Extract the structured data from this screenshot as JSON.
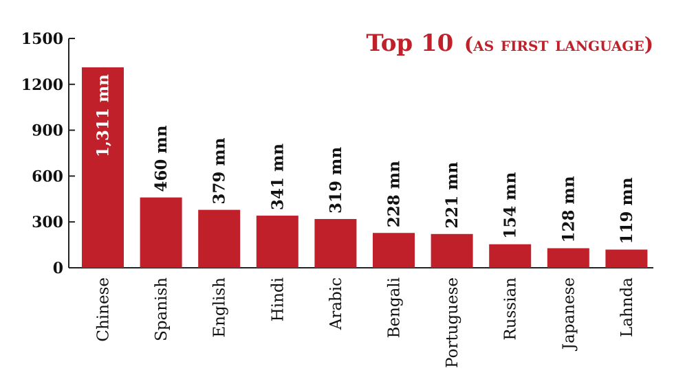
{
  "chart_data": {
    "type": "bar",
    "title_main": "Top 10",
    "title_sub": "(as first language)",
    "categories": [
      "Chinese",
      "Spanish",
      "English",
      "Hindi",
      "Arabic",
      "Bengali",
      "Portuguese",
      "Russian",
      "Japanese",
      "Lahnda"
    ],
    "values": [
      1311,
      460,
      379,
      341,
      319,
      228,
      221,
      154,
      128,
      119
    ],
    "data_labels": [
      "1,311 mn",
      "460 mn",
      "379 mn",
      "341 mn",
      "319 mn",
      "228 mn",
      "221 mn",
      "154 mn",
      "128 mn",
      "119 mn"
    ],
    "yticks": [
      "0",
      "300",
      "600",
      "900",
      "1200",
      "1500"
    ],
    "ylim": [
      0,
      1500
    ],
    "xlabel": "",
    "ylabel": "",
    "grid": false,
    "bar_color": "#c0202a",
    "axis_color": "#222222",
    "label_color": "#111111",
    "inside_label_color": "#ffffff"
  }
}
